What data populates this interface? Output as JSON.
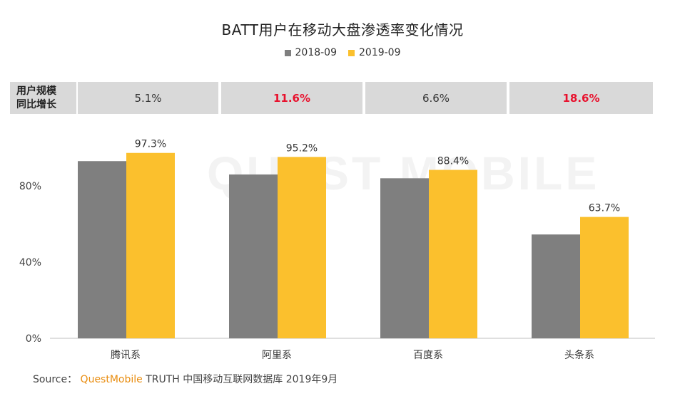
{
  "title": "BATT用户在移动大盘渗透率变化情况",
  "legend": [
    {
      "name": "2018-09",
      "color": "#7f7f7f"
    },
    {
      "name": "2019-09",
      "color": "#fbc02d"
    }
  ],
  "growth_row": {
    "header_line1": "用户规模",
    "header_line2": "同比增长",
    "values": [
      {
        "text": "5.1%",
        "highlight": false
      },
      {
        "text": "11.6%",
        "highlight": true
      },
      {
        "text": "6.6%",
        "highlight": false
      },
      {
        "text": "18.6%",
        "highlight": true
      }
    ],
    "highlight_color": "#e8112d"
  },
  "watermark": "QUEST MOBILE",
  "chart_data": {
    "type": "bar",
    "categories": [
      "腾讯系",
      "阿里系",
      "百度系",
      "头条系"
    ],
    "series": [
      {
        "name": "2018-09",
        "color": "#7f7f7f",
        "values": [
          93.0,
          86.0,
          84.0,
          54.5
        ],
        "labels": [
          "",
          "",
          "",
          ""
        ]
      },
      {
        "name": "2019-09",
        "color": "#fbc02d",
        "values": [
          97.3,
          95.2,
          88.4,
          63.7
        ],
        "labels": [
          "97.3%",
          "95.2%",
          "88.4%",
          "63.7%"
        ]
      }
    ],
    "yticks": [
      "0%",
      "40%",
      "80%"
    ],
    "ytick_values": [
      0,
      40,
      80
    ],
    "ylim": [
      0,
      120
    ],
    "grid": false,
    "legend_position": "top"
  },
  "source": {
    "prefix": "Source：",
    "brand": "QuestMobile",
    "text": "TRUTH 中国移动互联网数据库 2019年9月"
  }
}
